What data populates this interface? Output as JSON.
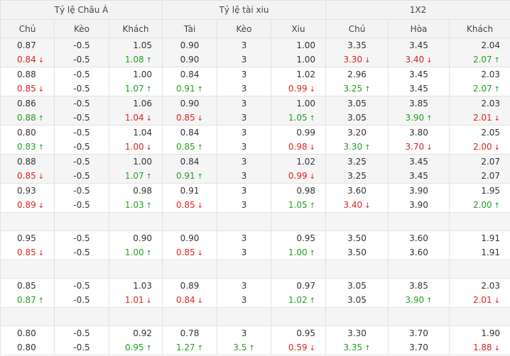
{
  "headers": {
    "groups": [
      "Tỷ lệ Châu Á",
      "Tỷ lệ tài xiu",
      "1X2"
    ],
    "columns": [
      "Chủ",
      "Kèo",
      "Khách",
      "Tài",
      "Kèo",
      "Xiu",
      "Chủ",
      "Hòa",
      "Khách"
    ]
  },
  "rows": [
    [
      [
        "0.87",
        "0.84",
        "down"
      ],
      [
        "-0.5",
        "-0.5",
        "none"
      ],
      [
        "1.05",
        "1.08",
        "up"
      ],
      [
        "0.90",
        "0.90",
        "none"
      ],
      [
        "3",
        "3",
        "none"
      ],
      [
        "1.00",
        "1.00",
        "none"
      ],
      [
        "3.35",
        "3.30",
        "down"
      ],
      [
        "3.45",
        "3.40",
        "down"
      ],
      [
        "2.04",
        "2.07",
        "up"
      ]
    ],
    [
      [
        "0.88",
        "0.85",
        "down"
      ],
      [
        "-0.5",
        "-0.5",
        "none"
      ],
      [
        "1.00",
        "1.07",
        "up"
      ],
      [
        "0.84",
        "0.91",
        "up"
      ],
      [
        "3",
        "3",
        "none"
      ],
      [
        "1.02",
        "0.99",
        "down"
      ],
      [
        "2.96",
        "3.25",
        "up"
      ],
      [
        "3.45",
        "3.45",
        "none"
      ],
      [
        "2.03",
        "2.07",
        "up"
      ]
    ],
    [
      [
        "0.86",
        "0.88",
        "up"
      ],
      [
        "-0.5",
        "-0.5",
        "none"
      ],
      [
        "1.06",
        "1.04",
        "down"
      ],
      [
        "0.90",
        "0.85",
        "down"
      ],
      [
        "3",
        "3",
        "none"
      ],
      [
        "1.00",
        "1.05",
        "up"
      ],
      [
        "3.05",
        "3.05",
        "none"
      ],
      [
        "3.85",
        "3.90",
        "up"
      ],
      [
        "2.03",
        "2.01",
        "down"
      ]
    ],
    [
      [
        "0.80",
        "0.83",
        "up"
      ],
      [
        "-0.5",
        "-0.5",
        "none"
      ],
      [
        "1.04",
        "1.00",
        "down"
      ],
      [
        "0.84",
        "0.85",
        "up"
      ],
      [
        "3",
        "3",
        "none"
      ],
      [
        "0.99",
        "0.98",
        "down"
      ],
      [
        "3.20",
        "3.30",
        "up"
      ],
      [
        "3.80",
        "3.70",
        "down"
      ],
      [
        "2.05",
        "2.00",
        "down"
      ]
    ],
    [
      [
        "0.88",
        "0.85",
        "down"
      ],
      [
        "-0.5",
        "-0.5",
        "none"
      ],
      [
        "1.00",
        "1.07",
        "up"
      ],
      [
        "0.84",
        "0.91",
        "up"
      ],
      [
        "3",
        "3",
        "none"
      ],
      [
        "1.02",
        "0.99",
        "down"
      ],
      [
        "3.25",
        "3.25",
        "none"
      ],
      [
        "3.45",
        "3.45",
        "none"
      ],
      [
        "2.07",
        "2.07",
        "none"
      ]
    ],
    [
      [
        "0.93",
        "0.89",
        "down"
      ],
      [
        "-0.5",
        "-0.5",
        "none"
      ],
      [
        "0.98",
        "1.03",
        "up"
      ],
      [
        "0.91",
        "0.85",
        "down"
      ],
      [
        "3",
        "3",
        "none"
      ],
      [
        "0.98",
        "1.05",
        "up"
      ],
      [
        "3.60",
        "3.40",
        "down"
      ],
      [
        "3.90",
        "3.90",
        "none"
      ],
      [
        "1.95",
        "2.00",
        "up"
      ]
    ],
    null,
    [
      [
        "0.95",
        "0.85",
        "down"
      ],
      [
        "-0.5",
        "-0.5",
        "none"
      ],
      [
        "0.90",
        "1.00",
        "up"
      ],
      [
        "0.90",
        "0.85",
        "down"
      ],
      [
        "3",
        "3",
        "none"
      ],
      [
        "0.95",
        "1.00",
        "up"
      ],
      [
        "3.50",
        "3.50",
        "none"
      ],
      [
        "3.60",
        "3.60",
        "none"
      ],
      [
        "1.91",
        "1.91",
        "none"
      ]
    ],
    null,
    [
      [
        "0.85",
        "0.87",
        "up"
      ],
      [
        "-0.5",
        "-0.5",
        "none"
      ],
      [
        "1.03",
        "1.01",
        "down"
      ],
      [
        "0.89",
        "0.84",
        "down"
      ],
      [
        "3",
        "3",
        "none"
      ],
      [
        "0.97",
        "1.02",
        "up"
      ],
      [
        "3.05",
        "3.05",
        "none"
      ],
      [
        "3.85",
        "3.90",
        "up"
      ],
      [
        "2.03",
        "2.01",
        "down"
      ]
    ],
    null,
    [
      [
        "0.80",
        "0.80",
        "none"
      ],
      [
        "-0.5",
        "-0.5",
        "none"
      ],
      [
        "0.92",
        "0.95",
        "up"
      ],
      [
        "0.78",
        "1.27",
        "up"
      ],
      [
        "3",
        "3.5",
        "up"
      ],
      [
        "0.95",
        "0.59",
        "down"
      ],
      [
        "3.30",
        "3.35",
        "up"
      ],
      [
        "3.70",
        "3.70",
        "none"
      ],
      [
        "1.90",
        "1.88",
        "down"
      ]
    ]
  ],
  "colors": {
    "up": "#22a022",
    "down": "#e02020",
    "header_bg": "#f3f3f3",
    "alt_row_bg": "#f5f5f5",
    "border": "#e2e2e2"
  },
  "icons": {
    "up": "arrow-up-icon",
    "down": "arrow-down-icon"
  }
}
